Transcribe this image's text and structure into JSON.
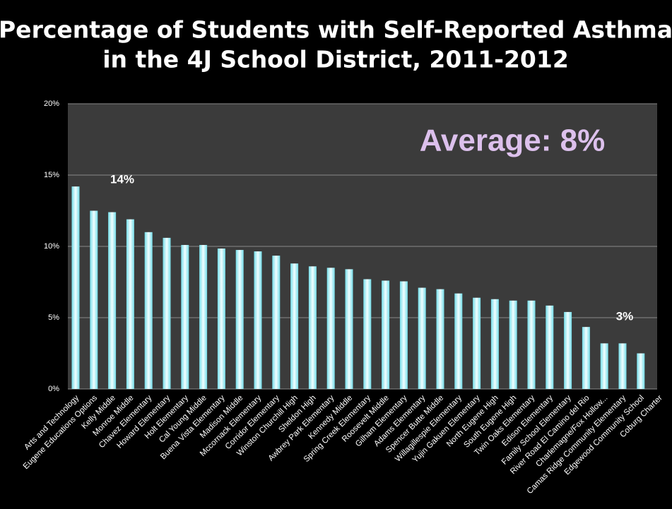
{
  "chart_data": {
    "type": "bar",
    "title": [
      "Percentage of Students with Self-Reported Asthma",
      "in the 4J School District, 2011-2012"
    ],
    "categories": [
      "Arts and Technology",
      "Eugene Educations Options",
      "Kelly Middle",
      "Monroe Middle",
      "Chavez Elementary",
      "Howard Elementary",
      "Holt Elementary",
      "Cal Young Middle",
      "Buena Vista Elementary",
      "Madison Middle",
      "Mccornack Elementary",
      "Corridor Elementary",
      "Winston Churchill High",
      "Sheldon High",
      "Awbrey Park Elementary",
      "Kennedy Middle",
      "Spring Creek Elementary",
      "Roosevelt Middle",
      "Gilham Elementary",
      "Adams Elementary",
      "Spencer Butte Middle",
      "Willagillespie Elementary",
      "Yujin Gakuen Elementary",
      "North Eugene High",
      "South Eugene High",
      "Twin Oaks Elementary",
      "Edison Elementary",
      "Family School Elementary",
      "River Road El Camino del Rio",
      "Charlemagne/Fox Hollow...",
      "Camas Ridge Community Elementary",
      "Edgewood Community School",
      "Coburg Charter"
    ],
    "values": [
      14.2,
      12.5,
      12.4,
      11.9,
      11.0,
      10.6,
      10.1,
      10.1,
      9.85,
      9.75,
      9.65,
      9.35,
      8.8,
      8.6,
      8.5,
      8.4,
      7.7,
      7.6,
      7.55,
      7.1,
      7.0,
      6.7,
      6.4,
      6.3,
      6.2,
      6.2,
      5.85,
      5.4,
      4.35,
      3.2,
      3.2,
      2.5,
      null
    ],
    "ylim": [
      0,
      20
    ],
    "yticks": [
      {
        "value": 0,
        "label": "0%"
      },
      {
        "value": 5,
        "label": "5%"
      },
      {
        "value": 10,
        "label": "10%"
      },
      {
        "value": 15,
        "label": "15%"
      },
      {
        "value": 20,
        "label": "20%"
      }
    ],
    "grid": true,
    "annotations": [
      "14%",
      "3%",
      "Average: 8%"
    ]
  }
}
